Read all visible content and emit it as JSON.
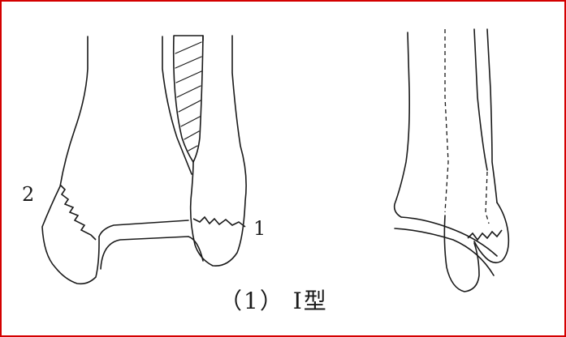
{
  "figure": {
    "border_color": "#d40000",
    "ink_color": "#1a1a1a",
    "labels": {
      "fracture_2": "2",
      "fracture_1": "1"
    },
    "caption": "（1） Ⅰ型"
  }
}
